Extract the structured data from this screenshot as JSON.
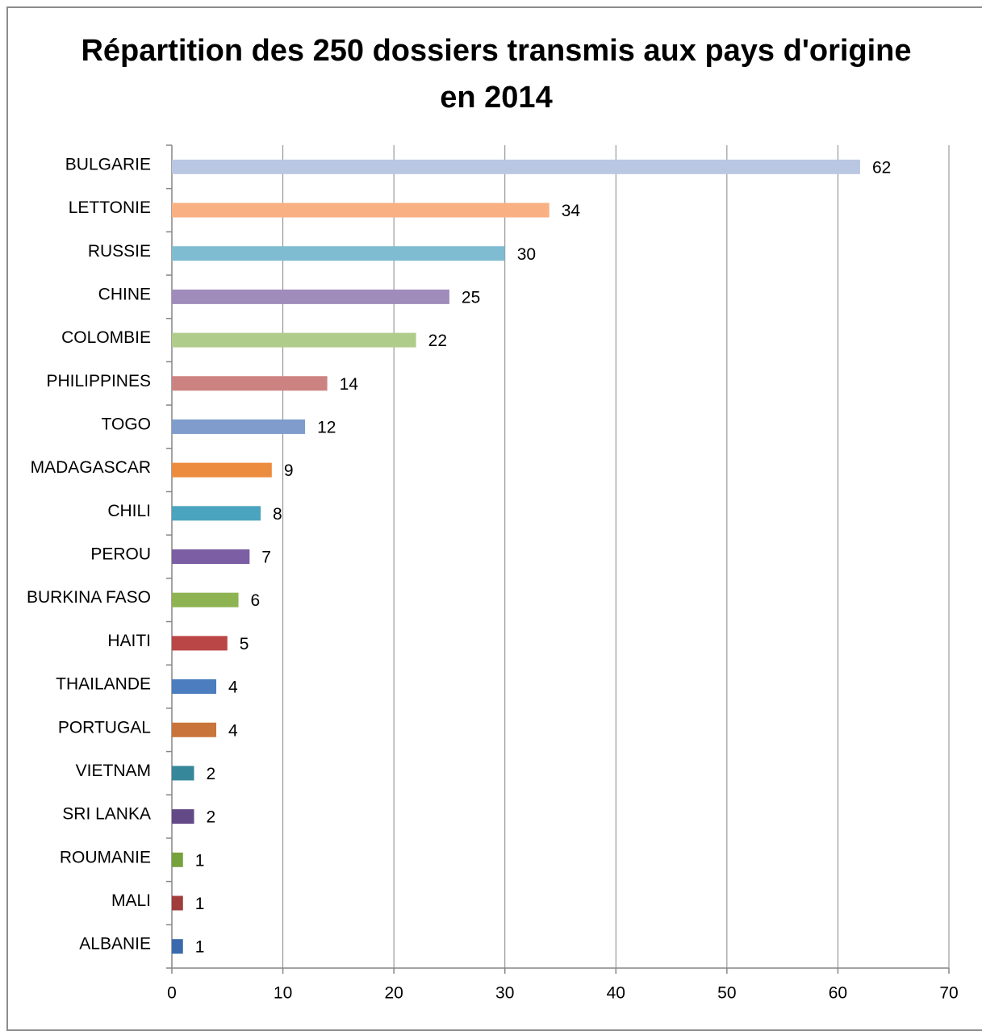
{
  "chart_data": {
    "type": "bar",
    "orientation": "horizontal",
    "title": "Répartition des 250 dossiers transmis aux pays d'origine en 2014",
    "categories": [
      "BULGARIE",
      "LETTONIE",
      "RUSSIE",
      "CHINE",
      "COLOMBIE",
      "PHILIPPINES",
      "TOGO",
      "MADAGASCAR",
      "CHILI",
      "PEROU",
      "BURKINA FASO",
      "HAITI",
      "THAILANDE",
      "PORTUGAL",
      "VIETNAM",
      "SRI LANKA",
      "ROUMANIE",
      "MALI",
      "ALBANIE"
    ],
    "values": [
      62,
      34,
      30,
      25,
      22,
      14,
      12,
      9,
      8,
      7,
      6,
      5,
      4,
      4,
      2,
      2,
      1,
      1,
      1
    ],
    "colors": [
      "#b9c7e3",
      "#f9b183",
      "#7fbcd2",
      "#a08cbb",
      "#b0cc8a",
      "#cd8282",
      "#7f9ccc",
      "#ec8c3f",
      "#4aa4bf",
      "#7b5ea3",
      "#8eb352",
      "#bb4646",
      "#4b7dbf",
      "#c9743a",
      "#37879b",
      "#634a86",
      "#76a13d",
      "#a03c3c",
      "#3a69ad"
    ],
    "xlim": [
      0,
      70
    ],
    "xticks": [
      0,
      10,
      20,
      30,
      40,
      50,
      60,
      70
    ],
    "grid": true
  }
}
